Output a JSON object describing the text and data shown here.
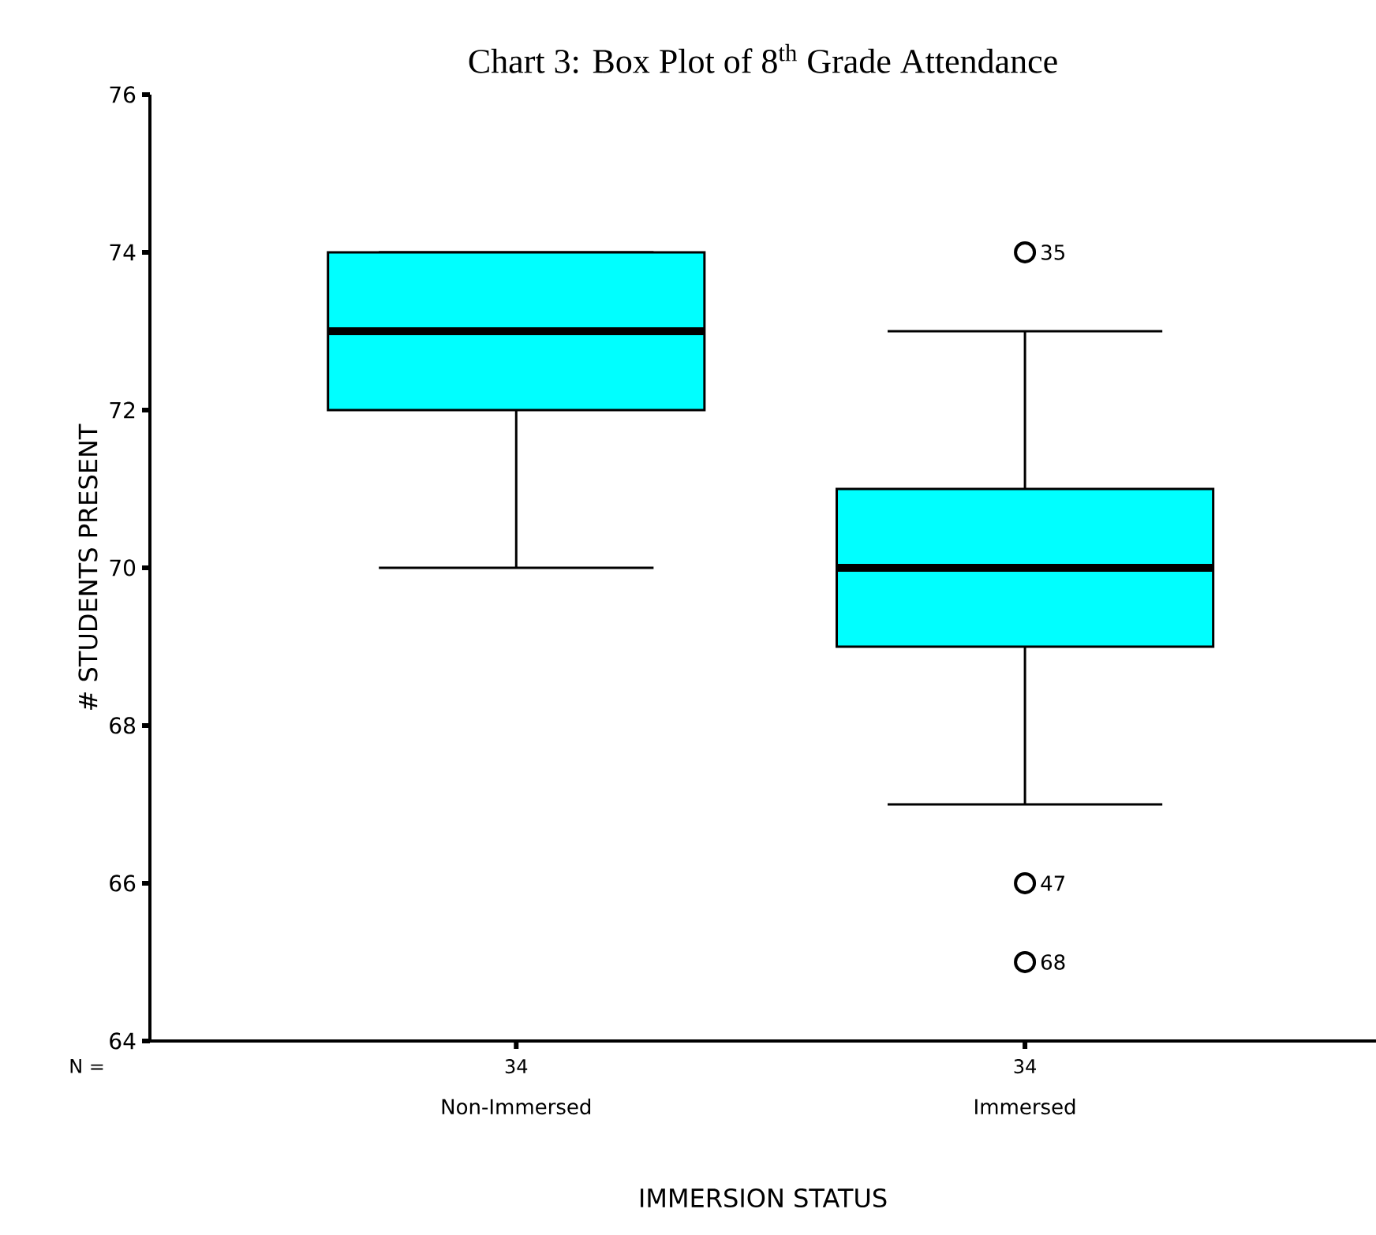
{
  "chart_data": {
    "type": "box",
    "title": "Chart 3: Box Plot of 8$^{th}$ Grade Attendance",
    "xlabel": "IMMERSION STATUS",
    "ylabel": "# STUDENTS PRESENT",
    "categories": [
      "Non-Immersed",
      "Immersed"
    ],
    "series": [
      {
        "color": "#00ffff",
        "boxes": [
          {
            "low": 70,
            "q1": 72,
            "median": 73,
            "q3": 74,
            "high": 74
          },
          {
            "low": 67,
            "q1": 69,
            "median": 70,
            "q3": 71,
            "high": 73,
            "outliers": [
              74,
              66,
              65
            ]
          }
        ]
      }
    ],
    "ylim": [
      64,
      76
    ],
    "yticks": [
      64,
      66,
      68,
      70,
      72,
      74,
      76
    ],
    "grid": false,
    "marker": "circle",
    "annotations": [
      "N =",
      {
        "text": "34",
        "x": "Non-Immersed"
      },
      {
        "text": "34",
        "x": "Immersed"
      },
      "35",
      "47",
      "68"
    ]
  }
}
